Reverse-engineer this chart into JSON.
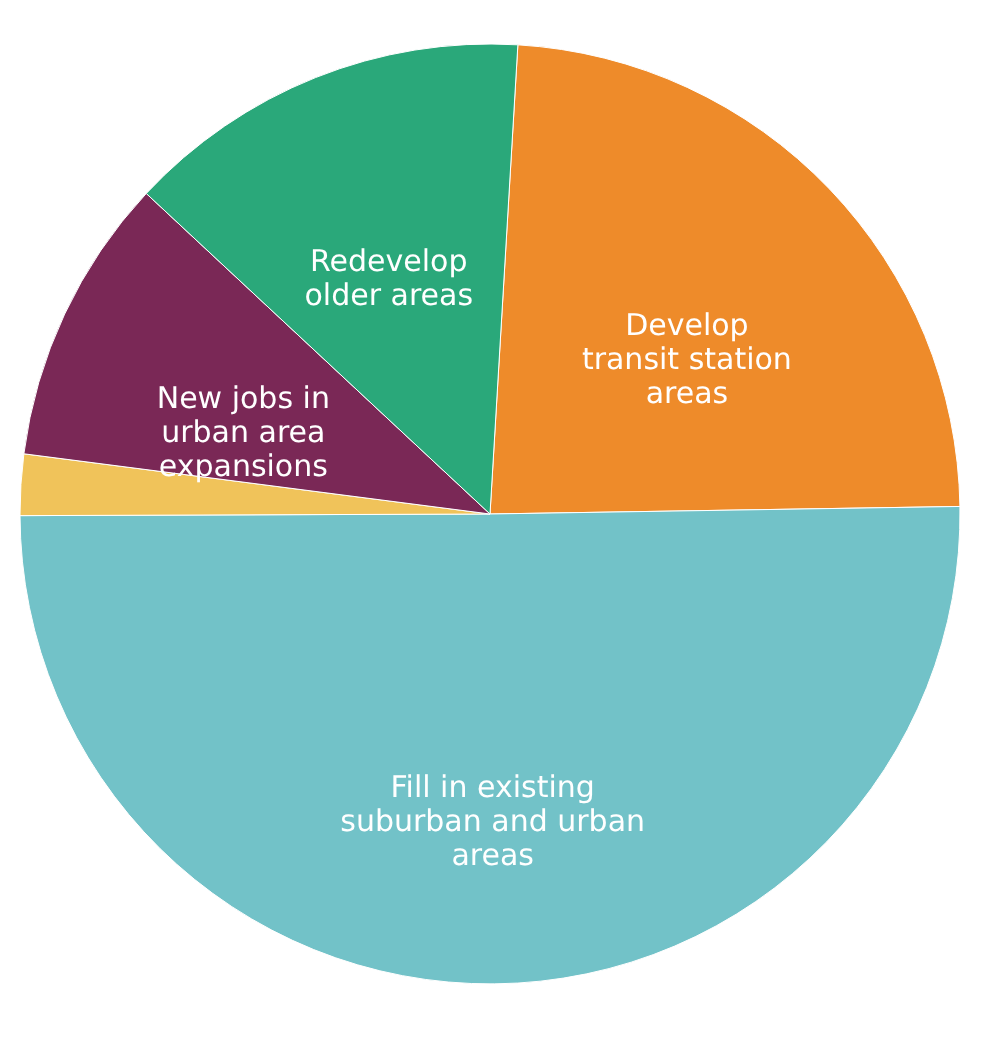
{
  "chart_data": {
    "type": "pie",
    "categories": [
      "Develop\ntransit station\nareas",
      "Fill in existing\nsuburban and urban\nareas",
      null,
      "New jobs in\nurban area\nexpansions",
      "Redevelop\nolder areas"
    ],
    "values": [
      23.8,
      50.2,
      2.1,
      9.9,
      14.0
    ],
    "colors": [
      "#ee8b2a",
      "#72c2c8",
      "#f0c35a",
      "#7a2856",
      "#2aa87a"
    ]
  }
}
